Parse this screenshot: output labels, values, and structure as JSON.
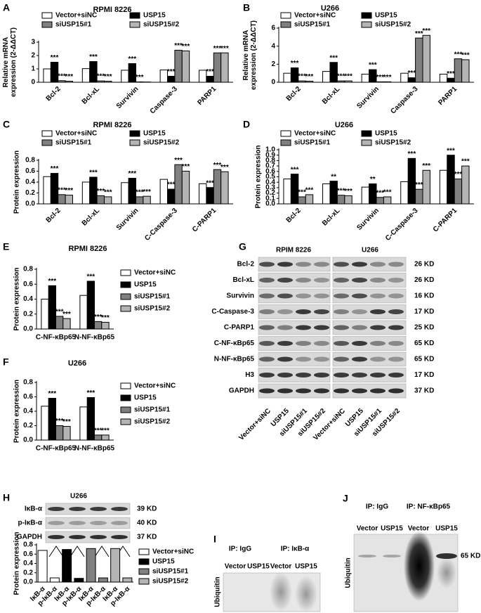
{
  "chart_data": [
    {
      "type": "bar",
      "panel": "A",
      "title": "RPMI 8226",
      "y_label": [
        "Relative mRNA",
        "expression (2-ΔΔCT)"
      ],
      "categories": [
        "Bcl-2",
        "Bcl-xL",
        "Survivin",
        "Caspase-3",
        "PARP1"
      ],
      "series": [
        {
          "name": "Vector+siNC",
          "color": "#ffffff",
          "values": [
            1.0,
            1.02,
            0.9,
            0.92,
            0.9
          ]
        },
        {
          "name": "USP15",
          "color": "#000000",
          "values": [
            1.5,
            1.55,
            1.4,
            0.45,
            0.45
          ],
          "significance": [
            "***",
            "***",
            "***",
            "***",
            "***"
          ]
        },
        {
          "name": "siUSP15#1",
          "color": "#808080",
          "values": [
            0.12,
            0.1,
            0.03,
            2.4,
            2.2
          ],
          "significance": [
            "***",
            "***",
            "***",
            "***",
            "***"
          ]
        },
        {
          "name": "siUSP15#2",
          "color": "#b4b4b4",
          "values": [
            0.08,
            0.08,
            0.02,
            2.35,
            2.2
          ],
          "significance": [
            "***",
            "***",
            null,
            "***",
            "***"
          ]
        }
      ],
      "ylim": [
        0,
        3
      ],
      "yticks": [
        0,
        1,
        2,
        3
      ]
    },
    {
      "type": "bar",
      "panel": "B",
      "title": "U266",
      "y_label": [
        "Relative mRNA",
        "expression (2-ΔΔCT)"
      ],
      "categories": [
        "Bcl-2",
        "Bcl-xL",
        "Survivin",
        "Caspase-3",
        "PARP1"
      ],
      "series": [
        {
          "name": "Vector+siNC",
          "color": "#ffffff",
          "values": [
            1.0,
            1.2,
            0.9,
            1.0,
            0.9
          ]
        },
        {
          "name": "USP15",
          "color": "#000000",
          "values": [
            1.6,
            2.2,
            1.4,
            0.5,
            0.45
          ],
          "significance": [
            "***",
            "***",
            "***",
            "***",
            "***"
          ]
        },
        {
          "name": "siUSP15#1",
          "color": "#808080",
          "values": [
            0.15,
            0.15,
            0.05,
            4.9,
            2.6
          ],
          "significance": [
            "***",
            "***",
            "***",
            "***",
            "***"
          ]
        },
        {
          "name": "siUSP15#2",
          "color": "#b4b4b4",
          "values": [
            0.12,
            0.15,
            0.05,
            5.2,
            2.5
          ],
          "significance": [
            "***",
            "***",
            "***",
            "***",
            "***"
          ]
        }
      ],
      "ylim": [
        0,
        6
      ],
      "yticks": [
        0,
        2,
        4,
        6
      ]
    },
    {
      "type": "bar",
      "panel": "C",
      "title": "RPMI 8226",
      "y_label": [
        "Protein expression"
      ],
      "categories": [
        "Bcl-2",
        "Bcl-xL",
        "Survivin",
        "C-Caspase-3",
        "C-PARP1"
      ],
      "series": [
        {
          "name": "Vector+siNC",
          "color": "#ffffff",
          "values": [
            0.5,
            0.4,
            0.39,
            0.45,
            0.37
          ]
        },
        {
          "name": "USP15",
          "color": "#000000",
          "values": [
            0.56,
            0.49,
            0.47,
            0.27,
            0.3
          ],
          "significance": [
            "***",
            "***",
            "***",
            "***",
            "***"
          ]
        },
        {
          "name": "siUSP15#1",
          "color": "#808080",
          "values": [
            0.17,
            0.15,
            0.13,
            0.72,
            0.63
          ],
          "significance": [
            "***",
            "***",
            "***",
            "***",
            "***"
          ]
        },
        {
          "name": "siUSP15#2",
          "color": "#b4b4b4",
          "values": [
            0.16,
            0.13,
            0.14,
            0.6,
            0.59
          ],
          "significance": [
            "***",
            "***",
            "***",
            "***",
            "***"
          ]
        }
      ],
      "ylim": [
        0,
        0.8
      ],
      "yticks": [
        {
          "value": 0,
          "label": "0.0"
        },
        0.2,
        0.4,
        0.6,
        0.8
      ]
    },
    {
      "type": "bar",
      "panel": "D",
      "title": "U266",
      "y_label": [
        "Protein expression"
      ],
      "categories": [
        "Bcl-2",
        "Bcl-xL",
        "Survivin",
        "C-Caspase-3",
        "C-PARP1"
      ],
      "series": [
        {
          "name": "Vector+siNC",
          "color": "#ffffff",
          "values": [
            0.46,
            0.37,
            0.31,
            0.41,
            0.62
          ]
        },
        {
          "name": "USP15",
          "color": "#000000",
          "values": [
            0.55,
            0.42,
            0.37,
            0.84,
            0.9
          ],
          "significance": [
            "***",
            "**",
            "**",
            "***",
            "***"
          ]
        },
        {
          "name": "siUSP15#1",
          "color": "#808080",
          "values": [
            0.13,
            0.16,
            0.12,
            0.27,
            0.46
          ],
          "significance": [
            "***",
            "***",
            "***",
            "***",
            "***"
          ]
        },
        {
          "name": "siUSP15#2",
          "color": "#b4b4b4",
          "values": [
            0.17,
            0.15,
            0.13,
            0.62,
            0.7
          ],
          "significance": [
            "***",
            "***",
            "***",
            "***",
            "***"
          ]
        }
      ],
      "ylim": [
        0,
        1.0
      ],
      "yticks": [
        {
          "value": 0,
          "label": "0.0"
        },
        0.1,
        0.2,
        0.3,
        0.4,
        0.5,
        0.6,
        0.7,
        0.8,
        0.9,
        {
          "value": 1.0,
          "label": "1.0"
        }
      ]
    },
    {
      "type": "bar",
      "panel": "E",
      "title": "RPMI 8226",
      "y_label": [
        "Protein expression"
      ],
      "categories": [
        "C-NF-κBp65",
        "N-NF-κBp65"
      ],
      "series": [
        {
          "name": "Vector+siNC",
          "color": "#ffffff",
          "values": [
            0.4,
            0.45
          ]
        },
        {
          "name": "USP15",
          "color": "#000000",
          "values": [
            0.58,
            0.64
          ],
          "significance": [
            "***",
            "***"
          ]
        },
        {
          "name": "siUSP15#1",
          "color": "#808080",
          "values": [
            0.17,
            0.1
          ],
          "significance": [
            "***",
            "***"
          ]
        },
        {
          "name": "siUSP15#2",
          "color": "#b4b4b4",
          "values": [
            0.14,
            0.09
          ],
          "significance": [
            "***",
            "***"
          ]
        }
      ],
      "ylim": [
        0,
        0.8
      ],
      "yticks": [
        {
          "value": 0,
          "label": "0.0"
        },
        0.2,
        0.4,
        0.6,
        0.8
      ]
    },
    {
      "type": "bar",
      "panel": "F",
      "title": "U266",
      "y_label": [
        "Protein expression"
      ],
      "categories": [
        "C-NF-κBp65",
        "N-NF-κBp65"
      ],
      "series": [
        {
          "name": "Vector+siNC",
          "color": "#ffffff",
          "values": [
            0.47,
            0.46
          ]
        },
        {
          "name": "USP15",
          "color": "#000000",
          "values": [
            0.58,
            0.59
          ],
          "significance": [
            "***",
            "***"
          ]
        },
        {
          "name": "siUSP15#1",
          "color": "#808080",
          "values": [
            0.2,
            0.07
          ],
          "significance": [
            "***",
            "***"
          ]
        },
        {
          "name": "siUSP15#2",
          "color": "#b4b4b4",
          "values": [
            0.19,
            0.07
          ],
          "significance": [
            "***",
            "***"
          ]
        }
      ],
      "ylim": [
        0,
        0.8
      ],
      "yticks": [
        {
          "value": 0,
          "label": "0.0"
        },
        0.2,
        0.4,
        0.6,
        0.8
      ]
    },
    {
      "type": "bar",
      "y_label": [
        "Protein expression"
      ],
      "categories": [
        "IκB-α",
        "p-IκB-α",
        "IκB-α",
        "p-IκB-α",
        "IκB-α",
        "p-IκB-α",
        "IκB-α",
        "p-IκB-α"
      ],
      "series": [
        {
          "name": "Vector+siNC",
          "color": "#ffffff",
          "values": [
            0.68,
            0.09,
            null,
            null,
            null,
            null,
            null,
            null
          ]
        },
        {
          "name": "USP15",
          "color": "#000000",
          "values": [
            null,
            null,
            0.7,
            0.08,
            null,
            null,
            null,
            null
          ]
        },
        {
          "name": "siUSP15#1",
          "color": "#808080",
          "values": [
            null,
            null,
            null,
            null,
            0.72,
            0.09,
            null,
            null
          ]
        },
        {
          "name": "siUSP15#2",
          "color": "#b4b4b4",
          "values": [
            null,
            null,
            null,
            null,
            null,
            null,
            0.72,
            0.09
          ]
        }
      ],
      "ylim": [
        0,
        0.8
      ],
      "yticks": [
        {
          "value": 0,
          "label": "0.0"
        },
        0.2,
        0.4,
        0.6,
        0.8
      ]
    }
  ],
  "blots": {
    "G": {
      "panel": "G",
      "groups": [
        "RPIM 8226",
        "U266"
      ],
      "rows": [
        {
          "protein": "Bcl-2",
          "size": "26 KD"
        },
        {
          "protein": "Bcl-xL",
          "size": "26 KD"
        },
        {
          "protein": "Survivin",
          "size": "16 KD"
        },
        {
          "protein": "C-Caspase-3",
          "size": "17 KD"
        },
        {
          "protein": "C-PARP1",
          "size": "25 KD"
        },
        {
          "protein": "C-NF-κBp65",
          "size": "65 KD"
        },
        {
          "protein": "N-NF-κBp65",
          "size": "65 KD"
        },
        {
          "protein": "H3",
          "size": "17 KD"
        },
        {
          "protein": "GAPDH",
          "size": "37 KD"
        }
      ],
      "lanes": [
        "Vector+siNC",
        "USP15",
        "siUSP15#1",
        "siUSP15#2",
        "Vector+siNC",
        "USP15",
        "siUSP15#1",
        "siUSP15#2"
      ]
    },
    "H": {
      "panel": "H",
      "title": "U266",
      "rows": [
        {
          "protein": "IκB-α",
          "size": "39 KD"
        },
        {
          "protein": "p-IκB-α",
          "size": "40 KD"
        },
        {
          "protein": "GAPDH",
          "size": "37 KD"
        }
      ]
    },
    "I": {
      "panel": "I",
      "ip": [
        "IP: IgG",
        "IP: IκB-α"
      ],
      "lanes": [
        "Vector",
        "USP15",
        "Vector",
        "USP15"
      ],
      "probe": "Ubiquitin"
    },
    "J": {
      "panel": "J",
      "ip": [
        "IP: IgG",
        "IP: NF-κBp65"
      ],
      "lanes": [
        "Vector",
        "USP15",
        "Vector",
        "USP15"
      ],
      "probe": "Ubiquitin",
      "size": "65 KD"
    }
  }
}
